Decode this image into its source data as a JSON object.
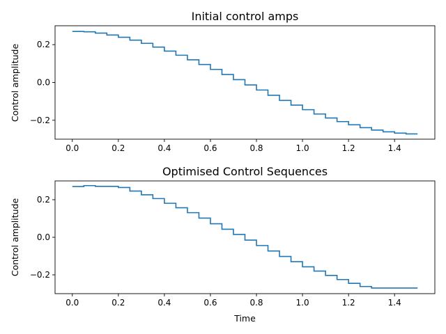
{
  "chart_data": [
    {
      "type": "line",
      "drawstyle": "steps-post",
      "title": "Initial control amps",
      "xlabel": "",
      "ylabel": "Control amplitude",
      "xlim": [
        -0.075,
        1.575
      ],
      "ylim": [
        -0.3,
        0.3
      ],
      "xticks": [
        0.0,
        0.2,
        0.4,
        0.6,
        0.8,
        1.0,
        1.2,
        1.4
      ],
      "xtick_labels": [
        "0.0",
        "0.2",
        "0.4",
        "0.6",
        "0.8",
        "1.0",
        "1.2",
        "1.4"
      ],
      "yticks": [
        0.2,
        0.0,
        -0.2
      ],
      "ytick_labels": [
        "0.2",
        "0.0",
        "−0.2"
      ],
      "grid": false,
      "series": [
        {
          "color": "#1f77b4",
          "x": [
            0.0,
            0.05,
            0.1,
            0.15,
            0.2,
            0.25,
            0.3,
            0.35,
            0.4,
            0.45,
            0.5,
            0.55,
            0.6,
            0.65,
            0.7,
            0.75,
            0.8,
            0.85,
            0.9,
            0.95,
            1.0,
            1.05,
            1.1,
            1.15,
            1.2,
            1.25,
            1.3,
            1.35,
            1.4,
            1.45,
            1.5
          ],
          "values": [
            0.27,
            0.268,
            0.261,
            0.251,
            0.239,
            0.224,
            0.207,
            0.187,
            0.166,
            0.144,
            0.12,
            0.095,
            0.069,
            0.042,
            0.015,
            -0.013,
            -0.04,
            -0.068,
            -0.095,
            -0.12,
            -0.144,
            -0.167,
            -0.188,
            -0.207,
            -0.224,
            -0.239,
            -0.252,
            -0.261,
            -0.268,
            -0.272,
            -0.272
          ]
        }
      ]
    },
    {
      "type": "line",
      "drawstyle": "steps-post",
      "title": "Optimised Control Sequences",
      "xlabel": "Time",
      "ylabel": "Control amplitude",
      "xlim": [
        -0.075,
        1.575
      ],
      "ylim": [
        -0.3,
        0.3
      ],
      "xticks": [
        0.0,
        0.2,
        0.4,
        0.6,
        0.8,
        1.0,
        1.2,
        1.4
      ],
      "xtick_labels": [
        "0.0",
        "0.2",
        "0.4",
        "0.6",
        "0.8",
        "1.0",
        "1.2",
        "1.4"
      ],
      "yticks": [
        0.2,
        0.0,
        -0.2
      ],
      "ytick_labels": [
        "0.2",
        "0.0",
        "−0.2"
      ],
      "grid": false,
      "series": [
        {
          "color": "#1f77b4",
          "x": [
            0.0,
            0.05,
            0.1,
            0.15,
            0.2,
            0.25,
            0.3,
            0.35,
            0.4,
            0.45,
            0.5,
            0.55,
            0.6,
            0.65,
            0.7,
            0.75,
            0.8,
            0.85,
            0.9,
            0.95,
            1.0,
            1.05,
            1.1,
            1.15,
            1.2,
            1.25,
            1.3,
            1.35,
            1.4,
            1.45,
            1.5
          ],
          "values": [
            0.27,
            0.275,
            0.271,
            0.271,
            0.265,
            0.246,
            0.226,
            0.206,
            0.181,
            0.157,
            0.131,
            0.102,
            0.072,
            0.043,
            0.015,
            -0.015,
            -0.044,
            -0.073,
            -0.102,
            -0.13,
            -0.157,
            -0.18,
            -0.203,
            -0.225,
            -0.245,
            -0.262,
            -0.27,
            -0.27,
            -0.27,
            -0.27,
            -0.27
          ]
        }
      ]
    }
  ]
}
